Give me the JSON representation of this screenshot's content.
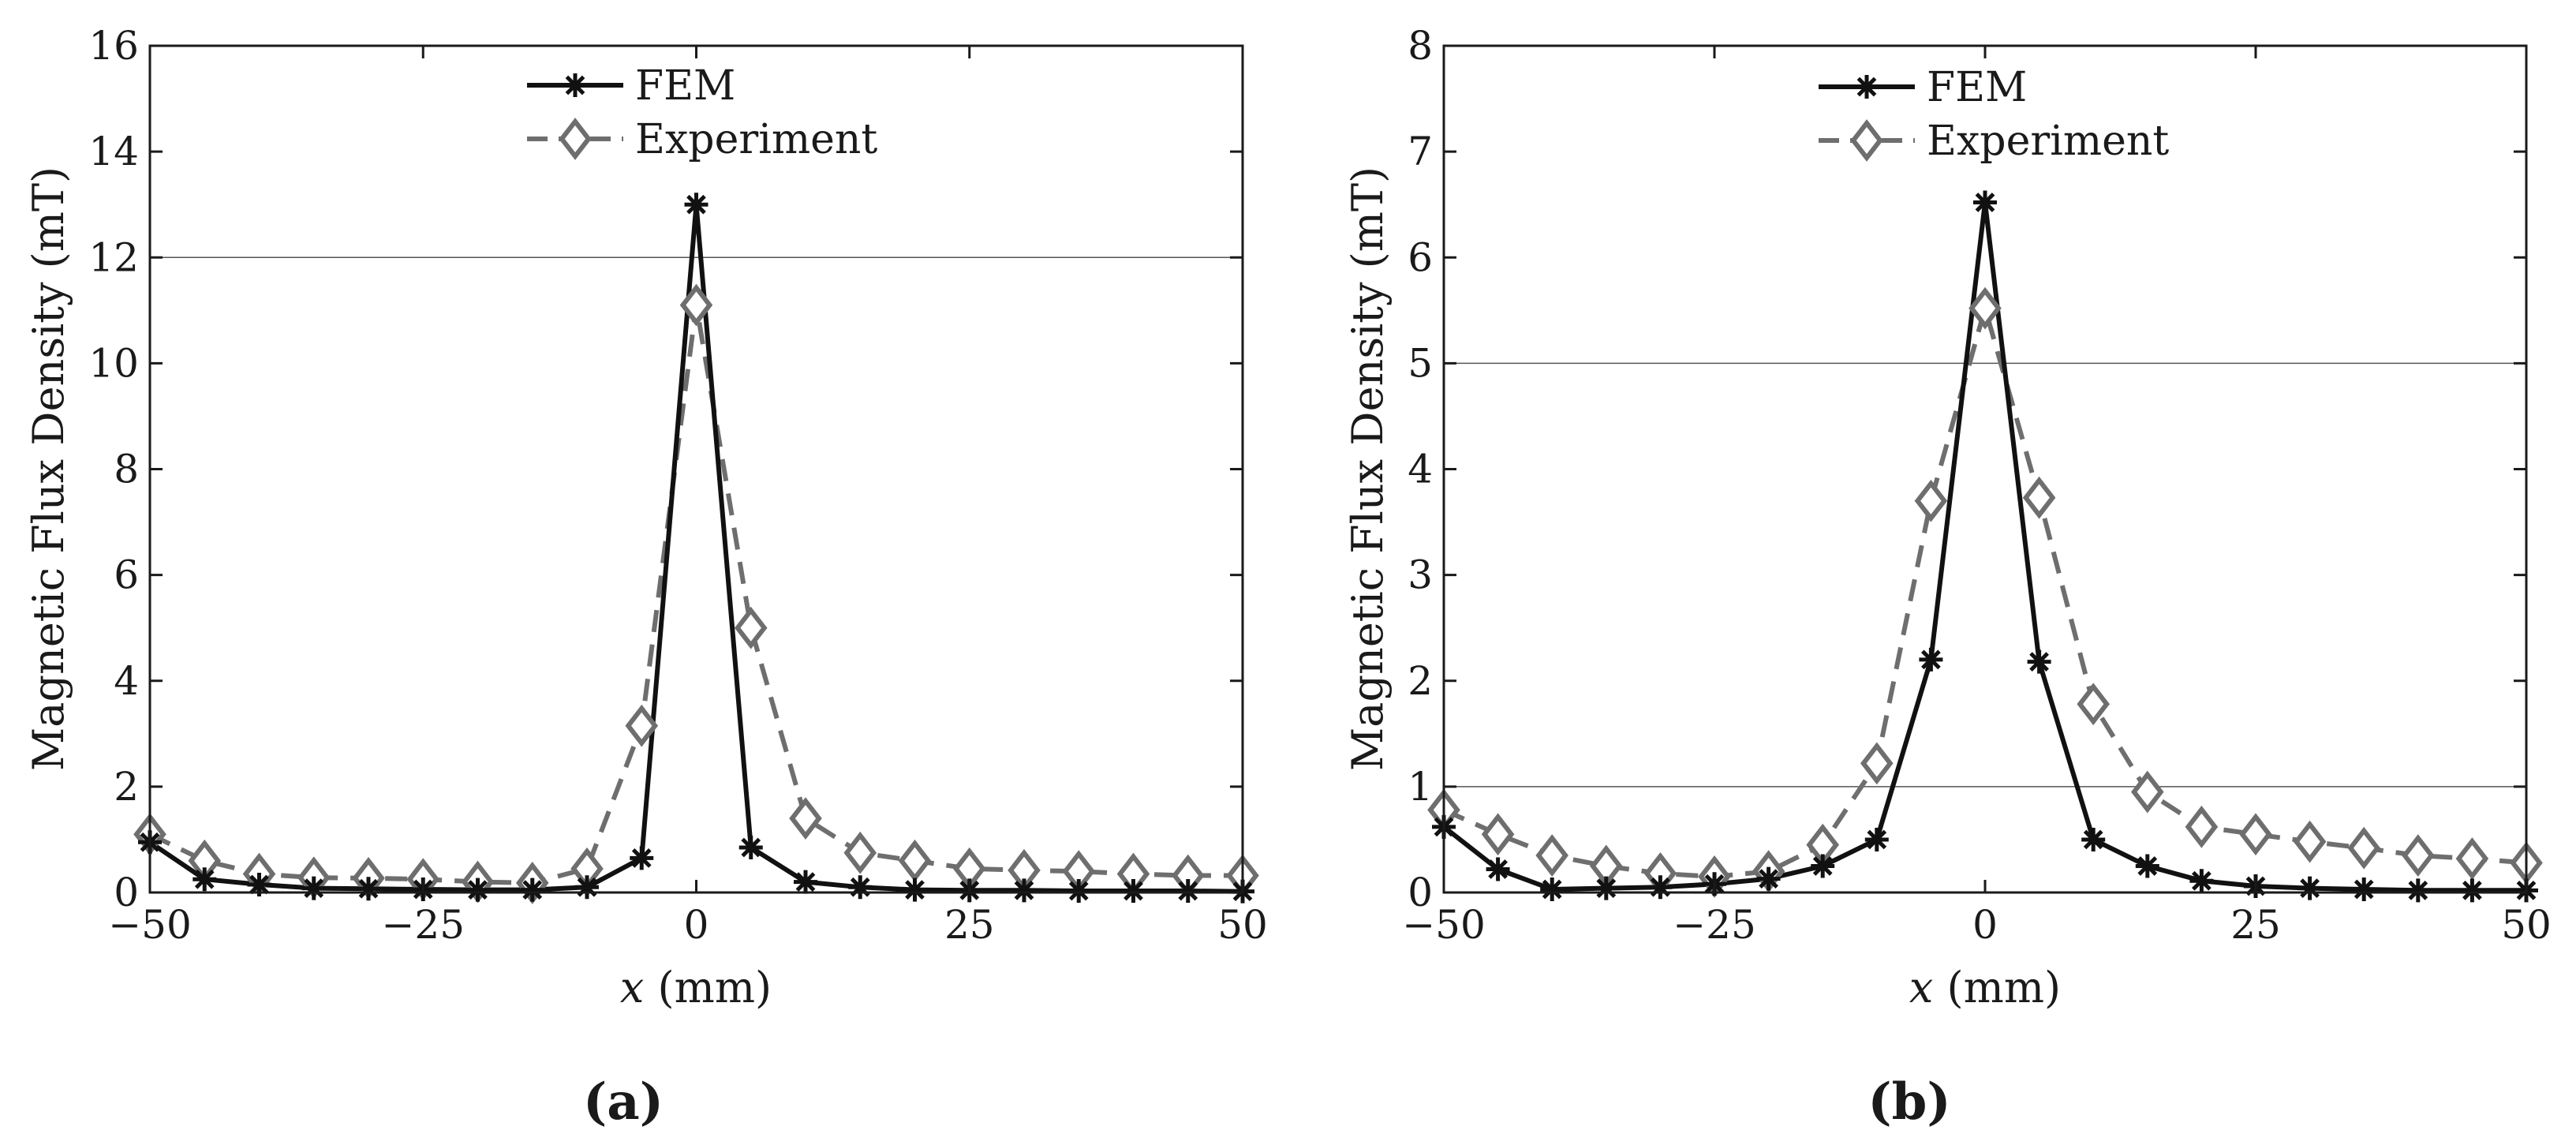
{
  "chart_data": [
    {
      "type": "line",
      "panel_label": "(a)",
      "xlabel_var": "x",
      "xlabel_unit": " (mm)",
      "ylabel": "Magnetic Flux Density (mT)",
      "xlim": [
        -50,
        50
      ],
      "ylim": [
        0,
        16
      ],
      "xticks": [
        -50,
        -25,
        0,
        25,
        50
      ],
      "xtick_labels": [
        "−50",
        "−25",
        "0",
        "25",
        "50"
      ],
      "yticks": [
        0,
        2,
        4,
        6,
        8,
        10,
        12,
        14,
        16
      ],
      "ytick_labels": [
        "0",
        "2",
        "4",
        "6",
        "8",
        "10",
        "12",
        "14",
        "16"
      ],
      "reference_lines": [
        12
      ],
      "legend_position": "top-center",
      "x": [
        -50,
        -45,
        -40,
        -35,
        -30,
        -25,
        -20,
        -15,
        -10,
        -5,
        0,
        5,
        10,
        15,
        20,
        25,
        30,
        35,
        40,
        45,
        50
      ],
      "series": [
        {
          "name": "FEM",
          "style": "solid-asterisk",
          "color": "#111111",
          "values": [
            0.95,
            0.25,
            0.15,
            0.08,
            0.07,
            0.06,
            0.05,
            0.05,
            0.1,
            0.65,
            13.0,
            0.85,
            0.2,
            0.1,
            0.05,
            0.04,
            0.04,
            0.03,
            0.03,
            0.03,
            0.02
          ]
        },
        {
          "name": "Experiment",
          "style": "dashed-diamond",
          "color": "#6e6e6e",
          "values": [
            1.1,
            0.6,
            0.35,
            0.28,
            0.27,
            0.25,
            0.2,
            0.18,
            0.45,
            3.15,
            11.1,
            5.0,
            1.4,
            0.75,
            0.6,
            0.45,
            0.42,
            0.4,
            0.35,
            0.32,
            0.32
          ]
        }
      ]
    },
    {
      "type": "line",
      "panel_label": "(b)",
      "xlabel_var": "x",
      "xlabel_unit": " (mm)",
      "ylabel": "Magnetic Flux Density (mT)",
      "xlim": [
        -50,
        50
      ],
      "ylim": [
        0,
        8
      ],
      "xticks": [
        -50,
        -25,
        0,
        25,
        50
      ],
      "xtick_labels": [
        "−50",
        "−25",
        "0",
        "25",
        "50"
      ],
      "yticks": [
        0,
        1,
        2,
        3,
        4,
        5,
        6,
        7,
        8
      ],
      "ytick_labels": [
        "0",
        "1",
        "2",
        "3",
        "4",
        "5",
        "6",
        "7",
        "8"
      ],
      "reference_lines": [
        5,
        1
      ],
      "legend_position": "top-center",
      "x": [
        -50,
        -45,
        -40,
        -35,
        -30,
        -25,
        -20,
        -15,
        -10,
        -5,
        0,
        5,
        10,
        15,
        20,
        25,
        30,
        35,
        40,
        45,
        50
      ],
      "series": [
        {
          "name": "FEM",
          "style": "solid-asterisk",
          "color": "#111111",
          "values": [
            0.62,
            0.22,
            0.03,
            0.04,
            0.05,
            0.08,
            0.13,
            0.25,
            0.5,
            2.2,
            6.52,
            2.18,
            0.5,
            0.25,
            0.11,
            0.06,
            0.04,
            0.03,
            0.02,
            0.02,
            0.02
          ]
        },
        {
          "name": "Experiment",
          "style": "dashed-diamond",
          "color": "#6e6e6e",
          "values": [
            0.78,
            0.55,
            0.35,
            0.25,
            0.18,
            0.15,
            0.2,
            0.45,
            1.22,
            3.7,
            5.52,
            3.73,
            1.78,
            0.95,
            0.62,
            0.55,
            0.48,
            0.42,
            0.35,
            0.32,
            0.28
          ]
        }
      ]
    }
  ]
}
